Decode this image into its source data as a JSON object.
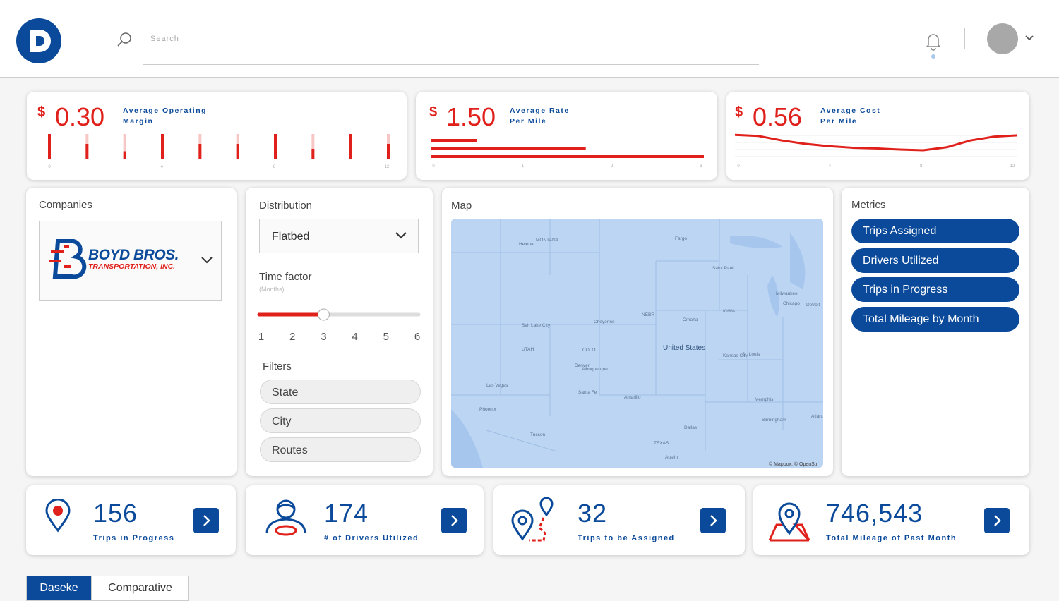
{
  "header": {
    "search_placeholder": "Search"
  },
  "kpis": [
    {
      "currency": "$",
      "value": "0.30",
      "label": "Average Operating Margin",
      "ticks": [
        "0",
        "4",
        "8",
        "12"
      ],
      "values": [
        1,
        0.6,
        0.3,
        1,
        0.6,
        0.6,
        1,
        0.4,
        1,
        0.6
      ]
    },
    {
      "currency": "$",
      "value": "1.50",
      "label": "Average Rate Per Mile",
      "ticks": [
        "0",
        "1",
        "2",
        "3"
      ],
      "values": [
        0.5,
        1.7,
        3
      ]
    },
    {
      "currency": "$",
      "value": "0.56",
      "label": "Average Cost Per Mile",
      "ticks": [
        "0",
        "4",
        "8",
        "12"
      ],
      "values": [
        0.9,
        0.85,
        0.65,
        0.5,
        0.4,
        0.33,
        0.3,
        0.25,
        0.22,
        0.35,
        0.65,
        0.82,
        0.88
      ]
    }
  ],
  "companies": {
    "title": "Companies",
    "logo_name": "BOYD BROS.",
    "logo_sub": "TRANSPORTATION, INC."
  },
  "distribution": {
    "title": "Distribution",
    "selected": "Flatbed",
    "time_factor": "Time factor",
    "time_unit": "(Months)",
    "slider_value": 3,
    "slider_ticks": [
      "1",
      "2",
      "3",
      "4",
      "5",
      "6"
    ],
    "filters_title": "Filters",
    "filters": [
      "State",
      "City",
      "Routes"
    ]
  },
  "map": {
    "title": "Map",
    "labels": [
      "United States",
      "MONTANA",
      "Helena",
      "Fargo",
      "Saint Paul",
      "Milwaukee",
      "Detroit",
      "Chicago",
      "Omaha",
      "Denver",
      "Cheyenne",
      "Salt Lake City",
      "Kansas City",
      "St. Louis",
      "Memphis",
      "Dallas",
      "Austin",
      "Albuquerque",
      "Las Vegas",
      "Tucson",
      "Phoenix",
      "Atlanta",
      "Santa Fe",
      "Amarillo",
      "Birmingham",
      "TEXAS",
      "IOWA",
      "NEBR",
      "UTAH",
      "COLO"
    ],
    "attribution": "© Mapbox, © OpenStr"
  },
  "metrics": {
    "title": "Metrics",
    "items": [
      "Trips Assigned",
      "Drivers Utilized",
      "Trips in Progress",
      "Total Mileage by Month"
    ]
  },
  "stats": [
    {
      "value": "156",
      "label": "Trips in Progress"
    },
    {
      "value": "174",
      "label": "# of Drivers Utilized"
    },
    {
      "value": "32",
      "label": "Trips to be Assigned"
    },
    {
      "value": "746,543",
      "label": "Total Mileage of Past Month"
    }
  ],
  "tabs": [
    "Daseke",
    "Comparative"
  ]
}
